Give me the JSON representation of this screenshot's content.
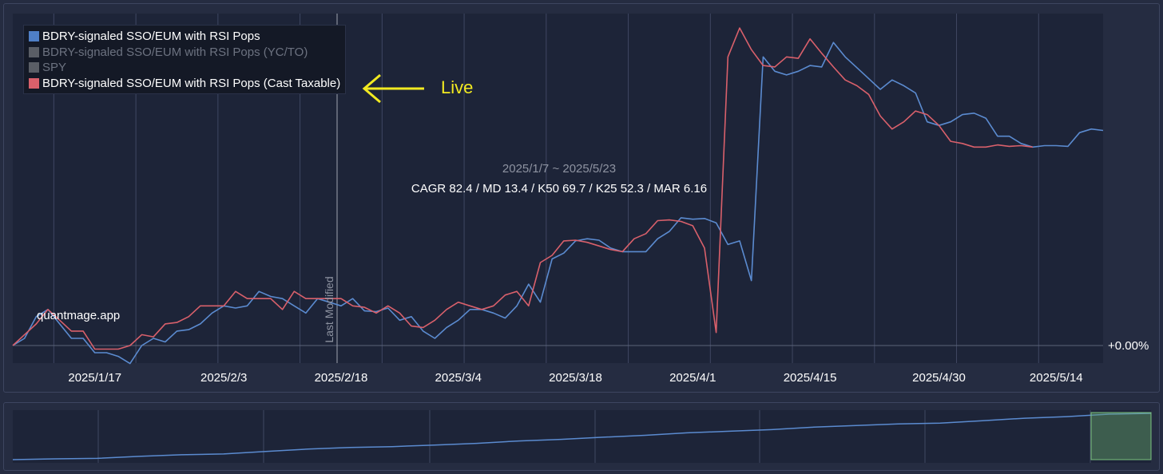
{
  "colors": {
    "blue": "#5b8bd0",
    "red": "#d9606b",
    "gray": "#5a5e66",
    "plot_bg": "#1d2438",
    "page_bg": "#252c41",
    "grid": "#3f4762",
    "navigator_mask": "#66a36b"
  },
  "legend": {
    "items": [
      {
        "label": "BDRY-signaled SSO/EUM with RSI Pops",
        "color": "#4f7fc6",
        "active": true
      },
      {
        "label": "BDRY-signaled SSO/EUM with RSI Pops (YC/TO)",
        "color": "#5a5e66",
        "active": false
      },
      {
        "label": "SPY",
        "color": "#5a5e66",
        "active": false
      },
      {
        "label": "BDRY-signaled SSO/EUM with RSI Pops (Cast Taxable)",
        "color": "#d9606b",
        "active": true
      }
    ]
  },
  "annotation": {
    "live_label": "Live",
    "arrow_icon": "left-arrow-icon",
    "arrow_color": "#f2ea21"
  },
  "header": {
    "date_range": "2025/1/7 ~ 2025/5/23",
    "stats": "CAGR 82.4 / MD 13.4 / K50 69.7 / K25 52.3 / MAR 6.16"
  },
  "watermark": "quantmage.app",
  "plot_line_label": "Last Modified",
  "y_axis": {
    "zero_label": "+0.00%"
  },
  "chart_data": {
    "type": "line",
    "title": "",
    "xlabel": "",
    "ylabel": "",
    "x_ticks": [
      "2025/1/17",
      "2025/2/3",
      "2025/2/18",
      "2025/3/4",
      "2025/3/18",
      "2025/4/1",
      "2025/4/15",
      "2025/4/30",
      "2025/5/14"
    ],
    "x_tick_indices": [
      7,
      18,
      28,
      38,
      48,
      58,
      68,
      79,
      89
    ],
    "ylim": [
      -3,
      46
    ],
    "grid": "vertical",
    "legend_position": "top-left",
    "plot_line_index": 28.8,
    "series": [
      {
        "name": "BDRY-signaled SSO/EUM with RSI Pops",
        "color": "#5b8bd0",
        "values": [
          0,
          1,
          4,
          5,
          3,
          1,
          1,
          -1,
          -1,
          -1.5,
          -2.5,
          0,
          1,
          0.5,
          2,
          2.2,
          3,
          4.5,
          5.5,
          5.2,
          5.5,
          7.5,
          6.8,
          6.5,
          5.5,
          4.5,
          6.5,
          6,
          5.5,
          6.5,
          4.8,
          4.7,
          5.2,
          3.5,
          4,
          2,
          1,
          2.5,
          3.5,
          5,
          5,
          4.5,
          3.8,
          5.5,
          8.5,
          6,
          12,
          12.8,
          14.5,
          14.8,
          14.6,
          13.5,
          13,
          13,
          13,
          14.8,
          15.8,
          17.7,
          17.5,
          17.6,
          17,
          14,
          14.5,
          9,
          40,
          38,
          37.5,
          38,
          38.8,
          38.6,
          42,
          40,
          38.5,
          37,
          35.5,
          36.8,
          36,
          35,
          31,
          30.5,
          31,
          32,
          32.2,
          31.5,
          29,
          29,
          28,
          27.5,
          27.7,
          27.7,
          27.6,
          29.5,
          30,
          29.8
        ]
      },
      {
        "name": "BDRY-signaled SSO/EUM with RSI Pops (Cast Taxable)",
        "color": "#d9606b",
        "values": [
          0,
          1.5,
          3,
          5,
          3.5,
          2,
          2,
          -0.5,
          -0.5,
          -0.5,
          0,
          1.5,
          1.2,
          3,
          3.2,
          4,
          5.5,
          5.5,
          5.5,
          7.5,
          6.5,
          6.5,
          6.5,
          5,
          7.5,
          6.5,
          6.5,
          6.5,
          6.5,
          5.5,
          5.3,
          4.5,
          5.5,
          4.5,
          2.7,
          2.5,
          3.5,
          5,
          6,
          5.5,
          5,
          5.5,
          7,
          7.5,
          5.5,
          11.5,
          12.5,
          14.5,
          14.6,
          14.3,
          13.8,
          13.3,
          13,
          14.8,
          15.5,
          17.3,
          17.4,
          17.2,
          16.6,
          13.5,
          1.8,
          40,
          44,
          41,
          38.8,
          38.6,
          40,
          39.8,
          42.5,
          40.5,
          38.6,
          36.8,
          36,
          34.8,
          31.8,
          30,
          31,
          32.5,
          32,
          30.5,
          28.3,
          28,
          27.5,
          27.5,
          27.8,
          27.6,
          27.7,
          27.5
        ]
      }
    ],
    "navigator_series": [
      0,
      0.5,
      0.8,
      2,
      3,
      3.5,
      5,
      6.5,
      7.5,
      8,
      9,
      10,
      11.5,
      12.5,
      13.8,
      15,
      16.5,
      17.5,
      18.5,
      20,
      21,
      22,
      22.5,
      24,
      25.5,
      26.5,
      28,
      28.5
    ]
  }
}
